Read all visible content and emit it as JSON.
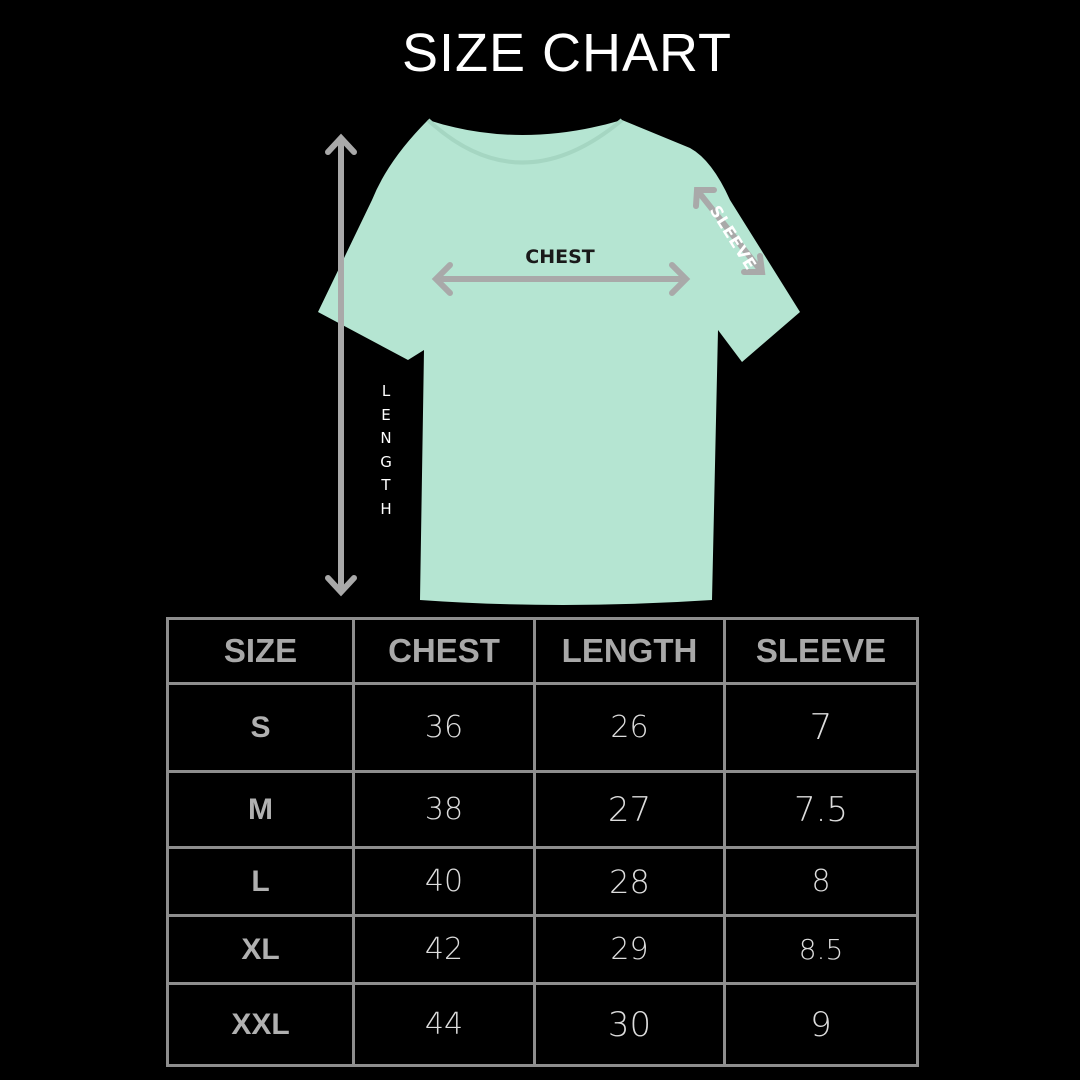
{
  "title": "SIZE CHART",
  "diagram": {
    "shirt_color": "#b5e5d2",
    "arrow_color": "#a9a9a9",
    "labels": {
      "chest": "CHEST",
      "length": "LENGTH",
      "sleeve": "SLEEVE"
    }
  },
  "table": {
    "headers": [
      "SIZE",
      "CHEST",
      "LENGTH",
      "SLEEVE"
    ],
    "rows": [
      [
        "S",
        "36",
        "26",
        "7"
      ],
      [
        "M",
        "38",
        "27",
        "7.5"
      ],
      [
        "L",
        "40",
        "28",
        "8"
      ],
      [
        "XL",
        "42",
        "29",
        "8.5"
      ],
      [
        "XXL",
        "44",
        "30",
        "9"
      ]
    ]
  }
}
